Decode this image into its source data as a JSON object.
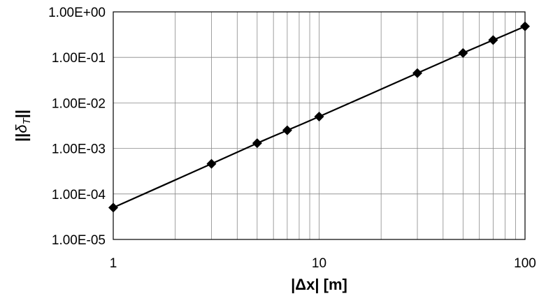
{
  "chart_data": {
    "type": "line",
    "title": "",
    "xlabel": "|Δx| [m]",
    "ylabel": "||δ_T||",
    "ylabel_parts": {
      "prefix": "||",
      "symbol": "δ",
      "subscript": "T",
      "suffix": "||"
    },
    "x_scale": "log",
    "y_scale": "log",
    "xlim": [
      1,
      100
    ],
    "ylim": [
      1e-05,
      1
    ],
    "x_ticks": [
      {
        "value": 1,
        "label": "1"
      },
      {
        "value": 10,
        "label": "10"
      },
      {
        "value": 100,
        "label": "100"
      }
    ],
    "y_ticks": [
      {
        "value": 1e-05,
        "label": "1.00E-05"
      },
      {
        "value": 0.0001,
        "label": "1.00E-04"
      },
      {
        "value": 0.001,
        "label": "1.00E-03"
      },
      {
        "value": 0.01,
        "label": "1.00E-02"
      },
      {
        "value": 0.1,
        "label": "1.00E-01"
      },
      {
        "value": 1,
        "label": "1.00E+00"
      }
    ],
    "grid": true,
    "marker": "diamond",
    "line_color": "#000000",
    "x": [
      1,
      3,
      5,
      7,
      10,
      30,
      50,
      70,
      100
    ],
    "y": [
      5e-05,
      0.00046,
      0.0013,
      0.0025,
      0.005,
      0.045,
      0.125,
      0.24,
      0.48
    ]
  }
}
